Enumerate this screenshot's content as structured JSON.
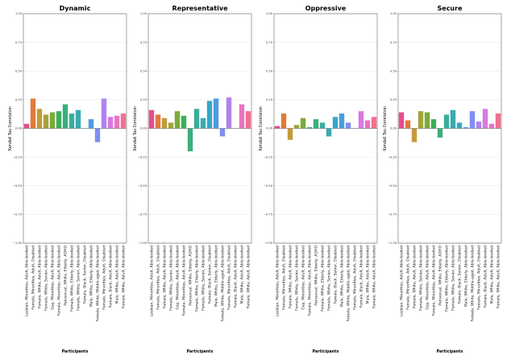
{
  "chart_data": {
    "type": "bar",
    "ylabel": "Kendall Tau Correlation",
    "xlabel": "Participants",
    "ylim": [
      -1.0,
      1.0
    ],
    "yticks": [
      "1.00",
      "0.75",
      "0.50",
      "0.25",
      "0.00",
      "−0.25",
      "−0.50",
      "−0.75",
      "−1.00"
    ],
    "grid": true,
    "categories": [
      "Lesbian, Minorities, Adult, Able-bodied",
      "Female, Minorities, Adult, Disabled",
      "Female, White, Adult, Able-bodied",
      "Female, White, Senior, Able-bodied",
      "Gay, Minorities, Adult, Able-bodied",
      "Female, Minorities, Adult, Able-bodied",
      "Pansexual, White, Elderly, ADHD",
      "Female, White, Elderly, Able-bodied",
      "Female, White, Senior, Able-bodied",
      "Female, Black, Senior, Disabled",
      "Male, White, Elderly, Able-bodied",
      "Female, White, Middle-aged, Able-bodied",
      "Female, Minorities, Adult, Disabled",
      "Female, Black, Adult, Able-bodied",
      "Male, White, Adult, Able-bodied",
      "Female, White, Adult, Able-bodied"
    ],
    "colors": [
      "#e74c8c",
      "#e07b39",
      "#c49a3a",
      "#a3a23a",
      "#7aab3a",
      "#3dae5a",
      "#3aaf7e",
      "#39ae9c",
      "#39aab3",
      "#3ba6c6",
      "#4d9be0",
      "#7f8ef0",
      "#b083ee",
      "#d67ae0",
      "#ea73c3",
      "#f0708f"
    ],
    "charts": [
      {
        "title": "Dynamic",
        "values": [
          0.04,
          0.26,
          0.17,
          0.12,
          0.14,
          0.15,
          0.21,
          0.13,
          0.16,
          0.0,
          0.08,
          -0.12,
          0.26,
          0.1,
          0.11,
          0.13
        ]
      },
      {
        "title": "Representative",
        "values": [
          0.16,
          0.12,
          0.09,
          0.05,
          0.15,
          0.11,
          -0.2,
          0.17,
          0.09,
          0.24,
          0.26,
          -0.07,
          0.27,
          0.0,
          0.21,
          0.15
        ]
      },
      {
        "title": "Oppressive",
        "values": [
          0.02,
          0.13,
          -0.1,
          0.03,
          0.09,
          0.01,
          0.08,
          0.05,
          -0.07,
          0.1,
          0.13,
          0.05,
          0.0,
          0.15,
          0.07,
          0.1
        ]
      },
      {
        "title": "Secure",
        "values": [
          0.14,
          0.07,
          -0.12,
          0.15,
          0.14,
          0.08,
          -0.08,
          0.12,
          0.16,
          0.05,
          0.01,
          0.15,
          0.06,
          0.17,
          0.04,
          0.13
        ]
      }
    ]
  }
}
